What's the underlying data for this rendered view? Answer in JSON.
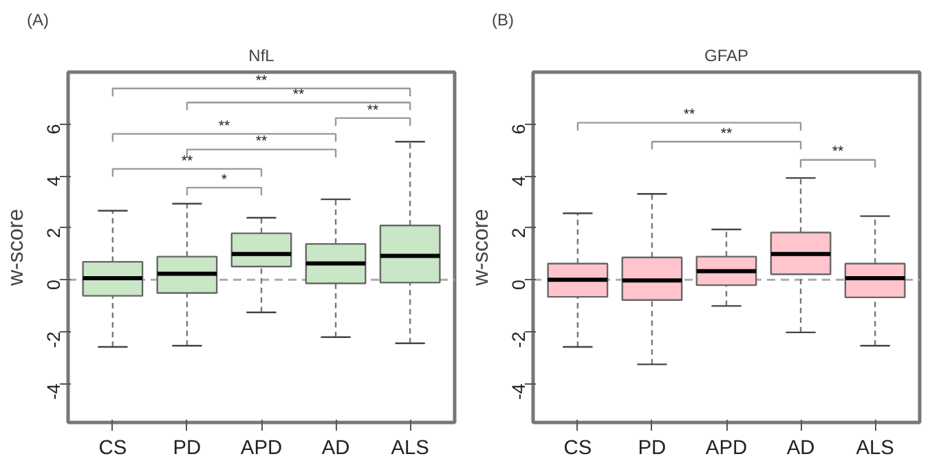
{
  "chart_data": [
    {
      "type": "box",
      "title": "NfL",
      "ylabel": "w-score",
      "categories": [
        "CS",
        "PD",
        "APD",
        "AD",
        "ALS"
      ],
      "color": "#c9e6c6",
      "ylim": [
        -5.5,
        8
      ],
      "yticks": [
        -4,
        -2,
        0,
        2,
        4,
        6
      ],
      "grid": false,
      "boxes": [
        {
          "low": -2.59,
          "q1": -0.62,
          "median": 0.06,
          "q3": 0.69,
          "high": 2.66
        },
        {
          "low": -2.54,
          "q1": -0.51,
          "median": 0.23,
          "q3": 0.89,
          "high": 2.93
        },
        {
          "low": -1.26,
          "q1": 0.51,
          "median": 0.99,
          "q3": 1.79,
          "high": 2.39
        },
        {
          "low": -2.21,
          "q1": -0.14,
          "median": 0.63,
          "q3": 1.38,
          "high": 3.1
        },
        {
          "low": -2.45,
          "q1": -0.11,
          "median": 0.92,
          "q3": 2.09,
          "high": 5.32
        }
      ],
      "ref_lines": [
        {
          "axis": "y",
          "value": 0,
          "color": "#aaaaaa",
          "line_style": "dashed"
        }
      ],
      "annotations": [
        "(A)",
        "**",
        "**",
        "**",
        "**",
        "**",
        "**",
        "*"
      ]
    },
    {
      "type": "box",
      "title": "GFAP",
      "ylabel": "w-score",
      "categories": [
        "CS",
        "PD",
        "APD",
        "AD",
        "ALS"
      ],
      "color": "#ffc4cc",
      "ylim": [
        -5.5,
        8
      ],
      "yticks": [
        -4,
        -2,
        0,
        2,
        4,
        6
      ],
      "grid": false,
      "boxes": [
        {
          "low": -2.59,
          "q1": -0.66,
          "median": 0.0,
          "q3": 0.62,
          "high": 2.56
        },
        {
          "low": -3.26,
          "q1": -0.78,
          "median": -0.03,
          "q3": 0.86,
          "high": 3.31
        },
        {
          "low": -1.01,
          "q1": -0.21,
          "median": 0.33,
          "q3": 0.89,
          "high": 1.94
        },
        {
          "low": -2.03,
          "q1": 0.21,
          "median": 0.99,
          "q3": 1.82,
          "high": 3.92
        },
        {
          "low": -2.54,
          "q1": -0.68,
          "median": 0.06,
          "q3": 0.62,
          "high": 2.45
        }
      ],
      "ref_lines": [
        {
          "axis": "y",
          "value": 0,
          "color": "#aaaaaa",
          "line_style": "dashed"
        }
      ],
      "annotations": [
        "(B)",
        "**",
        "**",
        "**"
      ]
    }
  ]
}
